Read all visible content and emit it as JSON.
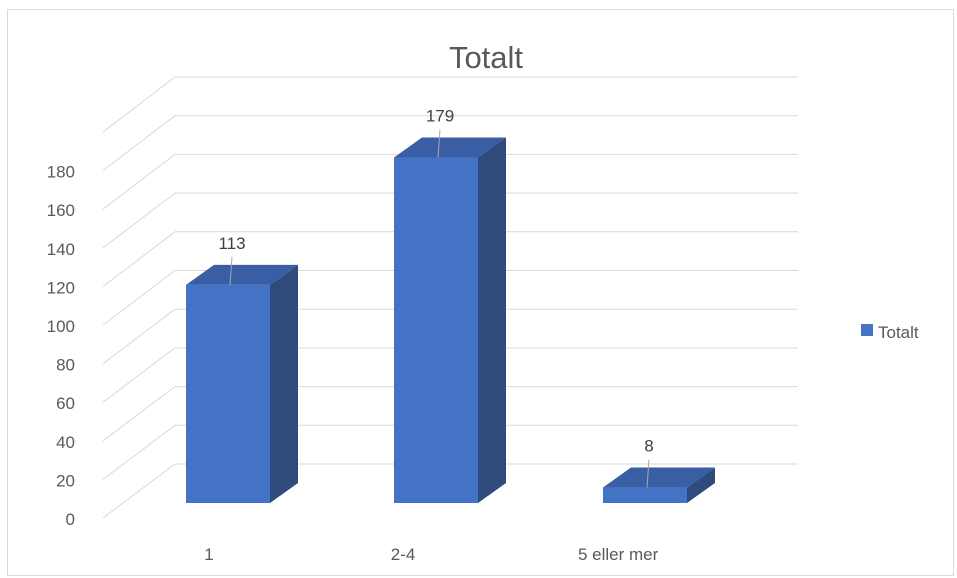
{
  "chart_data": {
    "type": "bar",
    "title": "Totalt",
    "categories": [
      "1",
      "2-4",
      "5 eller mer"
    ],
    "series": [
      {
        "name": "Totalt",
        "values": [
          113,
          179,
          8
        ],
        "color": "#4472c4"
      }
    ],
    "y_ticks": [
      "0",
      "20",
      "40",
      "60",
      "80",
      "100",
      "120",
      "140",
      "160",
      "180"
    ],
    "ylim": [
      0,
      180
    ],
    "grid": true,
    "legend": "right",
    "style": "3d-clustered-column"
  }
}
